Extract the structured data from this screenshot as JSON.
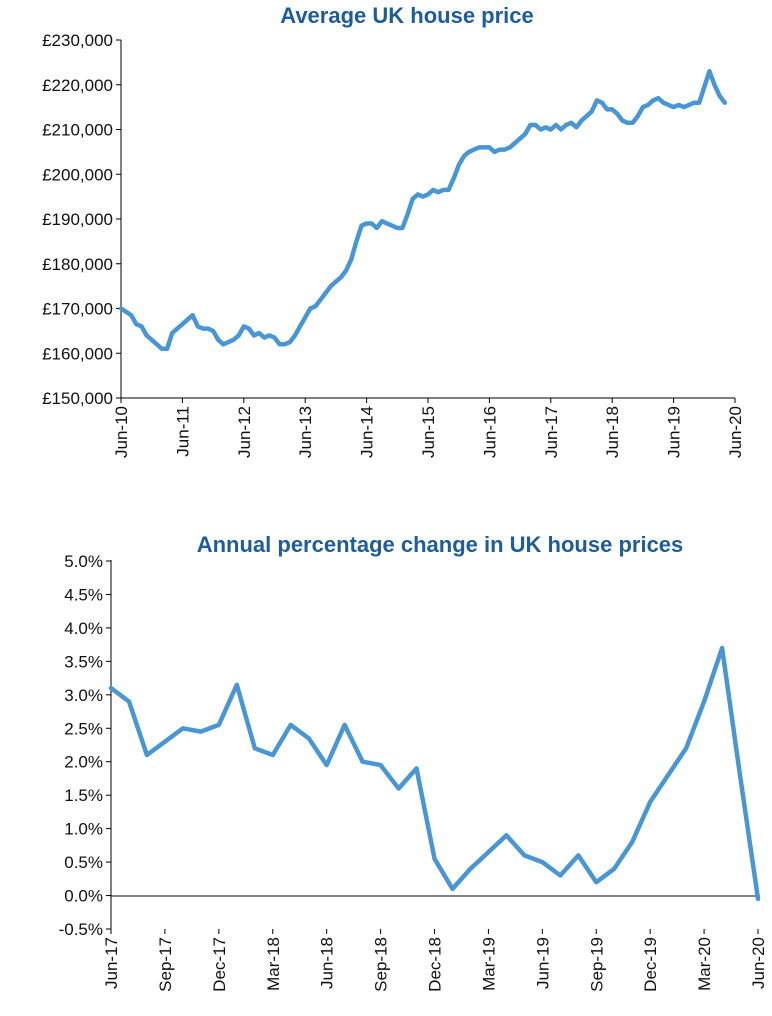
{
  "colors": {
    "series": "#4a96d2",
    "title": "#1f5c99",
    "axis": "#000000"
  },
  "chart_data": [
    {
      "type": "line",
      "title": "Average UK house price",
      "xlabel": "",
      "ylabel": "",
      "x_tick_labels": [
        "Jun-10",
        "Jun-11",
        "Jun-12",
        "Jun-13",
        "Jun-14",
        "Jun-15",
        "Jun-16",
        "Jun-17",
        "Jun-18",
        "Jun-19",
        "Jun-20"
      ],
      "y_tick_labels": [
        "£150,000",
        "£160,000",
        "£170,000",
        "£180,000",
        "£190,000",
        "£200,000",
        "£210,000",
        "£220,000",
        "£230,000"
      ],
      "ylim": [
        150000,
        230000
      ],
      "xlim": [
        0,
        120
      ],
      "x_unit": "months since Jun-10",
      "grid": false,
      "legend": "none",
      "points": [
        [
          0,
          170000
        ],
        [
          2,
          168500
        ],
        [
          3,
          166500
        ],
        [
          4,
          166000
        ],
        [
          5,
          164000
        ],
        [
          6,
          163000
        ],
        [
          7,
          162000
        ],
        [
          8,
          161000
        ],
        [
          9,
          161000
        ],
        [
          10,
          164500
        ],
        [
          11,
          165500
        ],
        [
          12,
          166500
        ],
        [
          13,
          167500
        ],
        [
          14,
          168500
        ],
        [
          15,
          166000
        ],
        [
          16,
          165500
        ],
        [
          17,
          165500
        ],
        [
          18,
          165000
        ],
        [
          19,
          163000
        ],
        [
          20,
          162000
        ],
        [
          21,
          162500
        ],
        [
          22,
          163000
        ],
        [
          23,
          164000
        ],
        [
          24,
          166000
        ],
        [
          25,
          165500
        ],
        [
          26,
          164000
        ],
        [
          27,
          164500
        ],
        [
          28,
          163500
        ],
        [
          29,
          164000
        ],
        [
          30,
          163500
        ],
        [
          31,
          162000
        ],
        [
          32,
          162000
        ],
        [
          33,
          162500
        ],
        [
          34,
          164000
        ],
        [
          35,
          166000
        ],
        [
          36,
          168000
        ],
        [
          37,
          170000
        ],
        [
          38,
          170500
        ],
        [
          39,
          172000
        ],
        [
          40,
          173500
        ],
        [
          41,
          175000
        ],
        [
          42,
          176000
        ],
        [
          43,
          177000
        ],
        [
          44,
          178500
        ],
        [
          45,
          181000
        ],
        [
          46,
          185000
        ],
        [
          47,
          188500
        ],
        [
          48,
          189000
        ],
        [
          49,
          189000
        ],
        [
          50,
          188000
        ],
        [
          51,
          189500
        ],
        [
          52,
          189000
        ],
        [
          53,
          188500
        ],
        [
          54,
          188000
        ],
        [
          55,
          188000
        ],
        [
          56,
          191000
        ],
        [
          57,
          194500
        ],
        [
          58,
          195500
        ],
        [
          59,
          195000
        ],
        [
          60,
          195500
        ],
        [
          61,
          196500
        ],
        [
          62,
          196000
        ],
        [
          63,
          196500
        ],
        [
          64,
          196500
        ],
        [
          65,
          199000
        ],
        [
          66,
          202000
        ],
        [
          67,
          204000
        ],
        [
          68,
          205000
        ],
        [
          69,
          205500
        ],
        [
          70,
          206000
        ],
        [
          71,
          206000
        ],
        [
          72,
          206000
        ],
        [
          73,
          205000
        ],
        [
          74,
          205500
        ],
        [
          75,
          205500
        ],
        [
          76,
          206000
        ],
        [
          77,
          207000
        ],
        [
          78,
          208000
        ],
        [
          79,
          209000
        ],
        [
          80,
          211000
        ],
        [
          81,
          211000
        ],
        [
          82,
          210000
        ],
        [
          83,
          210500
        ],
        [
          84,
          210000
        ],
        [
          85,
          211000
        ],
        [
          86,
          210000
        ],
        [
          87,
          211000
        ],
        [
          88,
          211500
        ],
        [
          89,
          210500
        ],
        [
          90,
          212000
        ],
        [
          91,
          213000
        ],
        [
          92,
          214000
        ],
        [
          93,
          216500
        ],
        [
          94,
          216000
        ],
        [
          95,
          214500
        ],
        [
          96,
          214500
        ],
        [
          97,
          213500
        ],
        [
          98,
          212000
        ],
        [
          99,
          211500
        ],
        [
          100,
          211500
        ],
        [
          101,
          213000
        ],
        [
          102,
          215000
        ],
        [
          103,
          215500
        ],
        [
          104,
          216500
        ],
        [
          105,
          217000
        ],
        [
          106,
          216000
        ],
        [
          107,
          215500
        ],
        [
          108,
          215000
        ],
        [
          109,
          215500
        ],
        [
          110,
          215000
        ],
        [
          111,
          215500
        ],
        [
          112,
          216000
        ],
        [
          113,
          216000
        ],
        [
          114,
          219500
        ],
        [
          115,
          223000
        ],
        [
          116,
          220000
        ],
        [
          117,
          217500
        ],
        [
          118,
          216000
        ]
      ]
    },
    {
      "type": "line",
      "title": "Annual percentage change in UK house prices",
      "xlabel": "",
      "ylabel": "",
      "x_tick_labels": [
        "Jun-17",
        "Sep-17",
        "Dec-17",
        "Mar-18",
        "Jun-18",
        "Sep-18",
        "Dec-18",
        "Mar-19",
        "Jun-19",
        "Sep-19",
        "Dec-19",
        "Mar-20",
        "Jun-20"
      ],
      "y_tick_labels": [
        "-0.5%",
        "0.0%",
        "0.5%",
        "1.0%",
        "1.5%",
        "2.0%",
        "2.5%",
        "3.0%",
        "3.5%",
        "4.0%",
        "4.5%",
        "5.0%"
      ],
      "ylim": [
        -0.5,
        5.0
      ],
      "xlim": [
        0,
        36
      ],
      "x_unit": "months since Jun-17",
      "grid": false,
      "legend": "none",
      "points": [
        [
          0,
          3.1
        ],
        [
          1,
          2.9
        ],
        [
          2,
          2.1
        ],
        [
          3,
          2.3
        ],
        [
          4,
          2.5
        ],
        [
          5,
          2.45
        ],
        [
          6,
          2.55
        ],
        [
          7,
          3.15
        ],
        [
          8,
          2.2
        ],
        [
          9,
          2.1
        ],
        [
          10,
          2.55
        ],
        [
          11,
          2.35
        ],
        [
          12,
          1.95
        ],
        [
          13,
          2.55
        ],
        [
          14,
          2.0
        ],
        [
          15,
          1.95
        ],
        [
          16,
          1.6
        ],
        [
          17,
          1.9
        ],
        [
          18,
          0.55
        ],
        [
          19,
          0.1
        ],
        [
          20,
          0.4
        ],
        [
          21,
          0.65
        ],
        [
          22,
          0.9
        ],
        [
          23,
          0.6
        ],
        [
          24,
          0.5
        ],
        [
          25,
          0.3
        ],
        [
          26,
          0.6
        ],
        [
          27,
          0.2
        ],
        [
          28,
          0.4
        ],
        [
          29,
          0.8
        ],
        [
          30,
          1.4
        ],
        [
          31,
          1.8
        ],
        [
          32,
          2.2
        ],
        [
          33,
          2.9
        ],
        [
          34,
          3.7
        ],
        [
          35,
          1.8
        ],
        [
          36,
          -0.05
        ]
      ]
    }
  ]
}
